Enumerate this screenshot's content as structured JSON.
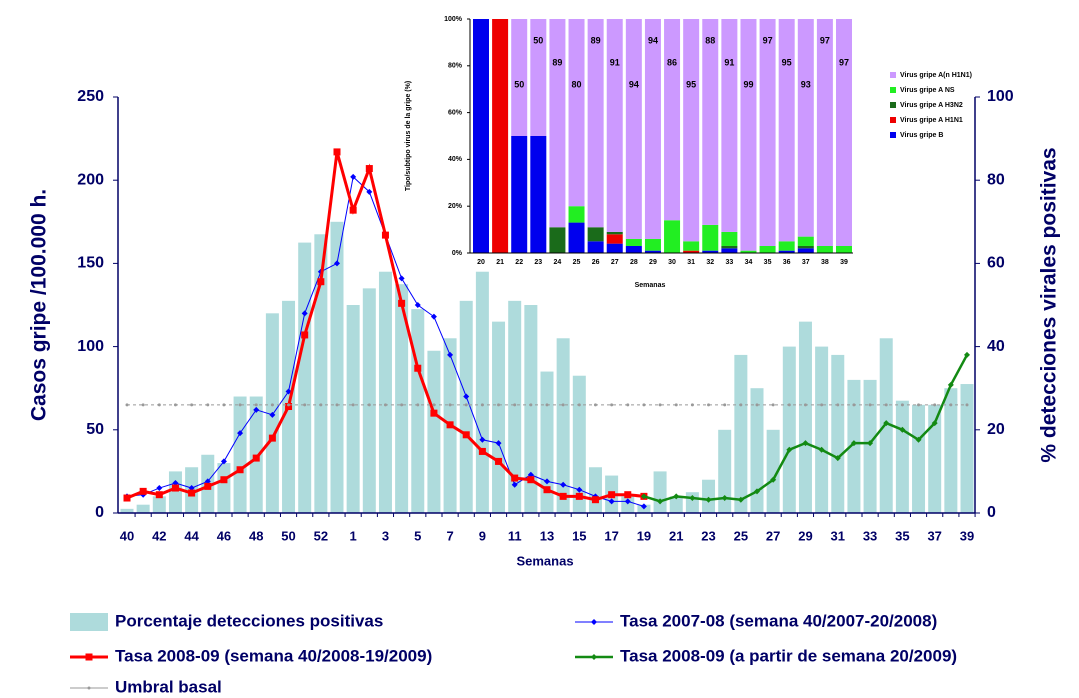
{
  "chart_data": [
    {
      "type": "combo",
      "x_label": "Semanas",
      "y_label": "Casos gripe /100.000 h.",
      "y2_label": "% detecciones virales positivas",
      "categories": [
        "40",
        null,
        "42",
        null,
        "44",
        null,
        "46",
        null,
        "48",
        null,
        "50",
        null,
        "52",
        null,
        "1",
        null,
        "3",
        null,
        "5",
        null,
        "7",
        null,
        "9",
        null,
        "11",
        null,
        "13",
        null,
        "15",
        null,
        "17",
        null,
        "19",
        null,
        "21",
        null,
        "23",
        null,
        "25",
        null,
        "27",
        null,
        "29",
        null,
        "31",
        null,
        "33",
        null,
        "35",
        null,
        "37",
        null,
        "39"
      ],
      "ylim": [
        0,
        250
      ],
      "yticks": [
        0,
        50,
        100,
        150,
        200,
        250
      ],
      "y2lim": [
        0,
        100
      ],
      "y2ticks": [
        0,
        20,
        40,
        60,
        80,
        100
      ],
      "series": [
        {
          "name": "Porcentaje detecciones positivas",
          "kind": "bar",
          "axis": "y2",
          "color": "#aedbdc",
          "values": [
            1,
            2,
            4,
            10,
            11,
            14,
            12,
            28,
            28,
            48,
            51,
            65,
            67,
            70,
            50,
            54,
            58,
            55,
            49,
            39,
            42,
            51,
            58,
            46,
            51,
            50,
            34,
            42,
            33,
            11,
            9,
            4,
            2,
            10,
            4,
            5,
            8,
            20,
            38,
            30,
            20,
            40,
            46,
            40,
            38,
            32,
            32,
            42,
            27,
            26,
            26,
            30,
            31
          ]
        },
        {
          "name": "Tasa 2007-08 (semana 40/2007-20/2008)",
          "kind": "line",
          "marker": "diamond",
          "color": "#0000ff",
          "values": [
            10,
            11,
            15,
            18,
            15,
            19,
            31,
            48,
            62,
            59,
            73,
            120,
            145,
            150,
            202,
            193,
            167,
            141,
            125,
            118,
            95,
            70,
            44,
            42,
            17,
            23,
            19,
            17,
            14,
            10,
            7,
            7,
            4,
            null,
            null,
            null,
            null,
            null,
            null,
            null,
            null,
            null,
            null,
            null,
            null,
            null,
            null,
            null,
            null,
            null,
            null,
            null,
            null
          ]
        },
        {
          "name": "Tasa 2008-09 (semana 40/2008-19/2009)",
          "kind": "line",
          "marker": "square",
          "color": "#ff0000",
          "values": [
            9,
            13,
            11,
            15,
            12,
            16,
            20,
            26,
            33,
            45,
            64,
            107,
            139,
            217,
            182,
            207,
            167,
            126,
            87,
            60,
            53,
            47,
            37,
            31,
            21,
            20,
            14,
            10,
            10,
            8,
            11,
            11,
            10,
            null,
            null,
            null,
            null,
            null,
            null,
            null,
            null,
            null,
            null,
            null,
            null,
            null,
            null,
            null,
            null,
            null,
            null,
            null,
            null
          ]
        },
        {
          "name": "Tasa 2008-09 (a partir de semana 20/2009)",
          "kind": "line",
          "marker": "diamond",
          "color": "#138a13",
          "values": [
            null,
            null,
            null,
            null,
            null,
            null,
            null,
            null,
            null,
            null,
            null,
            null,
            null,
            null,
            null,
            null,
            null,
            null,
            null,
            null,
            null,
            null,
            null,
            null,
            null,
            null,
            null,
            null,
            null,
            null,
            null,
            null,
            10,
            7,
            10,
            9,
            8,
            9,
            8,
            13,
            20,
            38,
            42,
            38,
            33,
            42,
            42,
            54,
            50,
            44,
            54,
            77,
            95
          ]
        },
        {
          "name": "Umbral basal",
          "kind": "threshold",
          "marker": "dot",
          "color": "#999999",
          "values": [
            65,
            65,
            65,
            65,
            65,
            65,
            65,
            65,
            65,
            65,
            65,
            65,
            65,
            65,
            65,
            65,
            65,
            65,
            65,
            65,
            65,
            65,
            65,
            65,
            65,
            65,
            65,
            65,
            65,
            65,
            65,
            65,
            65,
            65,
            65,
            65,
            65,
            65,
            65,
            65,
            65,
            65,
            65,
            65,
            65,
            65,
            65,
            65,
            65,
            65,
            65,
            65,
            65
          ]
        }
      ]
    },
    {
      "type": "stacked",
      "x_label": "Semanas",
      "y_label": "Tipo/subtipo virus de la gripe (%)",
      "categories": [
        "20",
        "21",
        "22",
        "23",
        "24",
        "25",
        "26",
        "27",
        "28",
        "29",
        "30",
        "31",
        "32",
        "33",
        "34",
        "35",
        "36",
        "37",
        "38",
        "39"
      ],
      "ylim": [
        0,
        100
      ],
      "yticks": [
        {
          "value": 0,
          "label": "0%"
        },
        {
          "value": 20,
          "label": "20%"
        },
        {
          "value": 40,
          "label": "40%"
        },
        {
          "value": 60,
          "label": "60%"
        },
        {
          "value": 80,
          "label": "80%"
        },
        {
          "value": 100,
          "label": "100%"
        }
      ],
      "series": [
        {
          "name": "Virus gripe B",
          "color": "#0000ee",
          "values": [
            100,
            0,
            50,
            50,
            0,
            13,
            5,
            4,
            3,
            1,
            0,
            0,
            1,
            2,
            0,
            0,
            1,
            2,
            0,
            0
          ]
        },
        {
          "name": "Virus gripe A H1N1",
          "color": "#ee0000",
          "values": [
            0,
            100,
            0,
            0,
            0,
            0,
            0,
            4,
            0,
            0,
            0,
            1,
            0,
            0,
            0,
            0,
            0,
            0,
            0,
            0
          ]
        },
        {
          "name": "Virus gripe A H3N2",
          "color": "#1a6b1a",
          "values": [
            0,
            0,
            0,
            0,
            11,
            0,
            6,
            1,
            0,
            0,
            0,
            0,
            0,
            1,
            0,
            0,
            0,
            1,
            0,
            0
          ]
        },
        {
          "name": "Virus gripe A NS",
          "color": "#22ee22",
          "values": [
            0,
            0,
            0,
            0,
            0,
            7,
            0,
            0,
            3,
            5,
            14,
            4,
            11,
            6,
            1,
            3,
            4,
            4,
            3,
            3
          ]
        },
        {
          "name": "Virus gripe A(n H1N1)",
          "color": "#cc99ff",
          "values": [
            0,
            0,
            50,
            50,
            89,
            80,
            89,
            91,
            94,
            94,
            86,
            95,
            88,
            91,
            99,
            97,
            95,
            93,
            97,
            97
          ],
          "labeled": true
        }
      ]
    }
  ]
}
